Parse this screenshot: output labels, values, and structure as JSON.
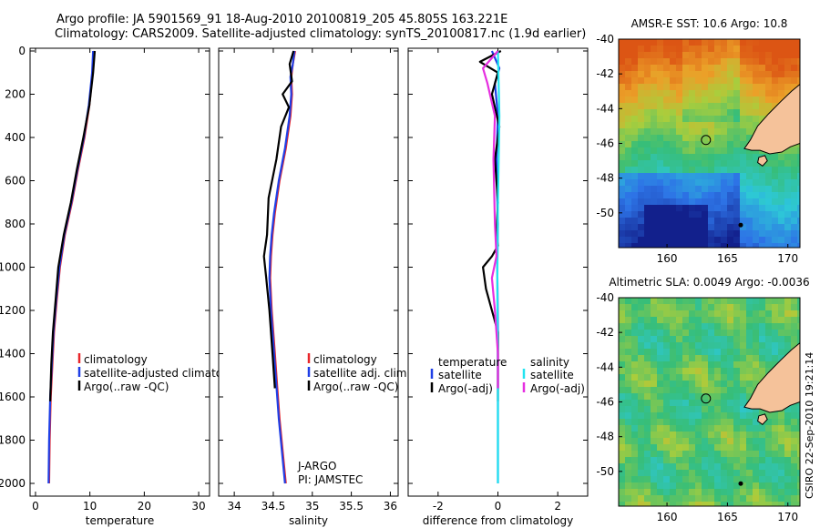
{
  "header": {
    "line1": "Argo profile: JA 5901569_91 18-Aug-2010 20100819_205 45.805S 163.221E",
    "line2": "Climatology: CARS2009. Satellite-adjusted climatology: synTS_20100817.nc (1.9d earlier)"
  },
  "credit": "CSIRO 22-Sep-2010 19:21:14",
  "colors": {
    "clim": "#e8262a",
    "sat": "#1f3fe6",
    "argo": "#000000",
    "sal_sat": "#22e4f0",
    "sal_argo": "#e62ee0"
  },
  "chart_data": [
    {
      "type": "line",
      "id": "temperature",
      "xlabel": "temperature",
      "xlim": [
        -1,
        32
      ],
      "ylim": [
        2050,
        0
      ],
      "xticks": [
        0,
        10,
        20,
        30
      ],
      "xtick_labels": [
        "0",
        "10",
        "20",
        "30"
      ],
      "yticks": [
        0,
        200,
        400,
        600,
        800,
        1000,
        1200,
        1400,
        1600,
        1800,
        2000
      ],
      "ytick_labels": [
        "0",
        "200",
        "400",
        "600",
        "800",
        "1000",
        "1200",
        "1400",
        "1600",
        "1800",
        "2000"
      ],
      "legend": [
        "climatology",
        "satellite-adjusted climatology",
        "Argo(..raw -QC)"
      ],
      "series": [
        {
          "name": "climatology",
          "color": "#e8262a",
          "x": [
            10.8,
            10.5,
            9.9,
            9.0,
            7.8,
            6.7,
            5.4,
            4.5,
            3.9,
            3.4,
            3.1,
            2.8,
            2.6,
            2.5
          ],
          "y": [
            0,
            100,
            250,
            400,
            550,
            700,
            850,
            1000,
            1150,
            1300,
            1450,
            1600,
            1800,
            2000
          ]
        },
        {
          "name": "satellite-adjusted climatology",
          "color": "#1f3fe6",
          "x": [
            10.6,
            10.4,
            9.8,
            8.9,
            7.7,
            6.6,
            5.3,
            4.4,
            3.8,
            3.3,
            3.0,
            2.7,
            2.5,
            2.4
          ],
          "y": [
            0,
            100,
            250,
            400,
            550,
            700,
            850,
            1000,
            1150,
            1300,
            1450,
            1600,
            1800,
            2000
          ]
        },
        {
          "name": "Argo(..raw -QC)",
          "color": "#000000",
          "x": [
            10.9,
            10.6,
            9.9,
            8.8,
            7.6,
            6.5,
            5.2,
            4.2,
            3.7,
            3.2,
            2.9,
            2.7
          ],
          "y": [
            0,
            100,
            250,
            400,
            550,
            700,
            850,
            1000,
            1150,
            1300,
            1450,
            1620
          ]
        }
      ]
    },
    {
      "type": "line",
      "id": "salinity",
      "xlabel": "salinity",
      "xlim": [
        33.8,
        36.1
      ],
      "ylim": [
        2050,
        0
      ],
      "xticks": [
        34,
        34.5,
        35,
        35.5,
        36
      ],
      "xtick_labels": [
        "34",
        "34.5",
        "35",
        "35.5",
        "36"
      ],
      "legend": [
        "climatology",
        "satellite adj. clim.",
        "Argo(..raw -QC)"
      ],
      "annotation": [
        "J-ARGO",
        "PI: JAMSTEC"
      ],
      "series": [
        {
          "name": "climatology",
          "color": "#e8262a",
          "x": [
            34.78,
            34.75,
            34.73,
            34.74,
            34.72,
            34.66,
            34.58,
            34.52,
            34.49,
            34.47,
            34.46,
            34.48,
            34.52,
            34.55,
            34.58,
            34.62,
            34.66
          ],
          "y": [
            0,
            60,
            120,
            200,
            300,
            450,
            600,
            750,
            850,
            950,
            1050,
            1200,
            1400,
            1550,
            1700,
            1850,
            2000
          ]
        },
        {
          "name": "satellite adj. clim.",
          "color": "#1f3fe6",
          "x": [
            34.77,
            34.75,
            34.72,
            34.73,
            34.71,
            34.65,
            34.57,
            34.51,
            34.48,
            34.46,
            34.45,
            34.47,
            34.51,
            34.54,
            34.57,
            34.61,
            34.65
          ],
          "y": [
            0,
            60,
            120,
            200,
            300,
            450,
            600,
            750,
            850,
            950,
            1050,
            1200,
            1400,
            1550,
            1700,
            1850,
            2000
          ]
        },
        {
          "name": "Argo(..raw -QC)",
          "color": "#000000",
          "x": [
            34.76,
            34.71,
            34.74,
            34.62,
            34.7,
            34.6,
            34.54,
            34.44,
            34.42,
            34.38,
            34.41,
            34.45,
            34.49,
            34.52
          ],
          "y": [
            0,
            60,
            140,
            200,
            260,
            350,
            500,
            680,
            850,
            950,
            1050,
            1200,
            1400,
            1560
          ]
        }
      ]
    },
    {
      "type": "line",
      "id": "difference",
      "xlabel": "difference from climatology",
      "xlim": [
        -3.0,
        3.0
      ],
      "ylim": [
        2050,
        0
      ],
      "xticks": [
        -2,
        0,
        2
      ],
      "xtick_labels": [
        "-2",
        "0",
        "2"
      ],
      "legend": [
        "temperature",
        "satellite",
        "Argo(-adj)",
        "salinity",
        "satellite",
        "Argo(-adj)"
      ],
      "series": [
        {
          "name": "temperature satellite",
          "color": "#1f3fe6",
          "x": [
            -0.2,
            0.05,
            -0.1,
            0.0,
            -0.05,
            0.0,
            -0.02,
            0.0,
            0.0,
            0.0
          ],
          "y": [
            0,
            80,
            150,
            300,
            500,
            800,
            1000,
            1300,
            1600,
            2000
          ]
        },
        {
          "name": "temperature Argo(-adj)",
          "color": "#000000",
          "x": [
            0.1,
            -0.6,
            0.0,
            -0.2,
            0.05,
            -0.1,
            0.0,
            -0.05,
            0.0,
            -0.2,
            -0.5,
            -0.4,
            -0.2,
            0.0,
            0.0
          ],
          "y": [
            0,
            50,
            100,
            200,
            350,
            500,
            700,
            850,
            900,
            950,
            1000,
            1100,
            1200,
            1300,
            1620
          ]
        },
        {
          "name": "salinity satellite",
          "color": "#22e4f0",
          "x": [
            0.0,
            0.05,
            0.0,
            -0.02,
            0.0,
            0.0
          ],
          "y": [
            0,
            300,
            700,
            1100,
            1500,
            2000
          ]
        },
        {
          "name": "salinity Argo(-adj)",
          "color": "#e62ee0",
          "x": [
            0.0,
            -0.5,
            -0.35,
            -0.1,
            -0.15,
            -0.1,
            -0.05,
            -0.2,
            -0.1,
            0.0,
            0.0
          ],
          "y": [
            0,
            80,
            150,
            300,
            500,
            800,
            950,
            1050,
            1200,
            1400,
            1560
          ]
        }
      ]
    },
    {
      "type": "heatmap",
      "id": "sst-map",
      "title": "AMSR-E SST: 10.6 Argo: 10.8",
      "xlim": [
        156,
        171
      ],
      "ylim": [
        -52,
        -40
      ],
      "xticks": [
        160,
        165,
        170
      ],
      "xtick_labels": [
        "160",
        "165",
        "170"
      ],
      "yticks": [
        -40,
        -42,
        -44,
        -46,
        -48,
        -50
      ],
      "ytick_labels": [
        "-40",
        "-42",
        "-44",
        "-46",
        "-48",
        "-50"
      ],
      "profile_location": [
        163.221,
        -45.805
      ]
    },
    {
      "type": "heatmap",
      "id": "sla-map",
      "title": "Altimetric SLA: 0.0049 Argo: -0.0036",
      "xlim": [
        156,
        171
      ],
      "ylim": [
        -52,
        -40
      ],
      "xticks": [
        160,
        165,
        170
      ],
      "xtick_labels": [
        "160",
        "165",
        "170"
      ],
      "yticks": [
        -40,
        -42,
        -44,
        -46,
        -48,
        -50
      ],
      "ytick_labels": [
        "-40",
        "-42",
        "-44",
        "-46",
        "-48",
        "-50"
      ],
      "profile_location": [
        163.221,
        -45.805
      ]
    }
  ]
}
